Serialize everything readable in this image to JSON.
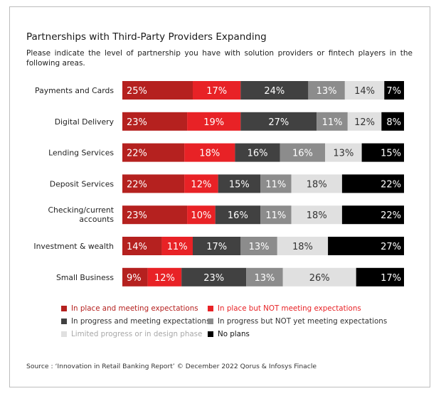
{
  "chart_data": {
    "type": "stacked-bar-horizontal",
    "title": "Partnerships with Third-Party Providers Expanding",
    "subtitle": "Please indicate the level of partnership you have with solution providers or fintech players in the following areas.",
    "categories": [
      "Payments and Cards",
      "Digital Delivery",
      "Lending Services",
      "Deposit Services",
      "Checking/current accounts",
      "Investment & wealth",
      "Small Business"
    ],
    "series": [
      {
        "name": "In place and meeting expectations",
        "color": "#b5211f",
        "label_color": "#ffffff",
        "values": [
          25,
          23,
          22,
          22,
          23,
          14,
          9
        ]
      },
      {
        "name": "In place but NOT meeting expectations",
        "color": "#e82226",
        "label_color": "#ffffff",
        "values": [
          17,
          19,
          18,
          12,
          10,
          11,
          12
        ]
      },
      {
        "name": "In progress and meeting expectations",
        "color": "#414141",
        "label_color": "#ffffff",
        "values": [
          24,
          27,
          16,
          15,
          16,
          17,
          23
        ]
      },
      {
        "name": "In progress but NOT yet  meeting expectations",
        "color": "#8c8c8c",
        "label_color": "#ffffff",
        "values": [
          13,
          11,
          16,
          11,
          11,
          13,
          13
        ]
      },
      {
        "name": "Limited progress or in design phase",
        "color": "#e0e0e0",
        "label_color": "#333333",
        "values": [
          14,
          12,
          13,
          18,
          18,
          18,
          26
        ]
      },
      {
        "name": "No plans",
        "color": "#000000",
        "label_color": "#ffffff",
        "values": [
          7,
          8,
          15,
          22,
          22,
          27,
          17
        ]
      }
    ],
    "value_suffix": "%"
  },
  "legend": {
    "text_colors": [
      "#b5211f",
      "#e82226",
      "#333333",
      "#333333",
      "#a8a8a8",
      "#111111"
    ]
  },
  "source": "Source : ‘Innovation in Retail Banking Report’ © December 2022 Qorus & Infosys Finacle"
}
